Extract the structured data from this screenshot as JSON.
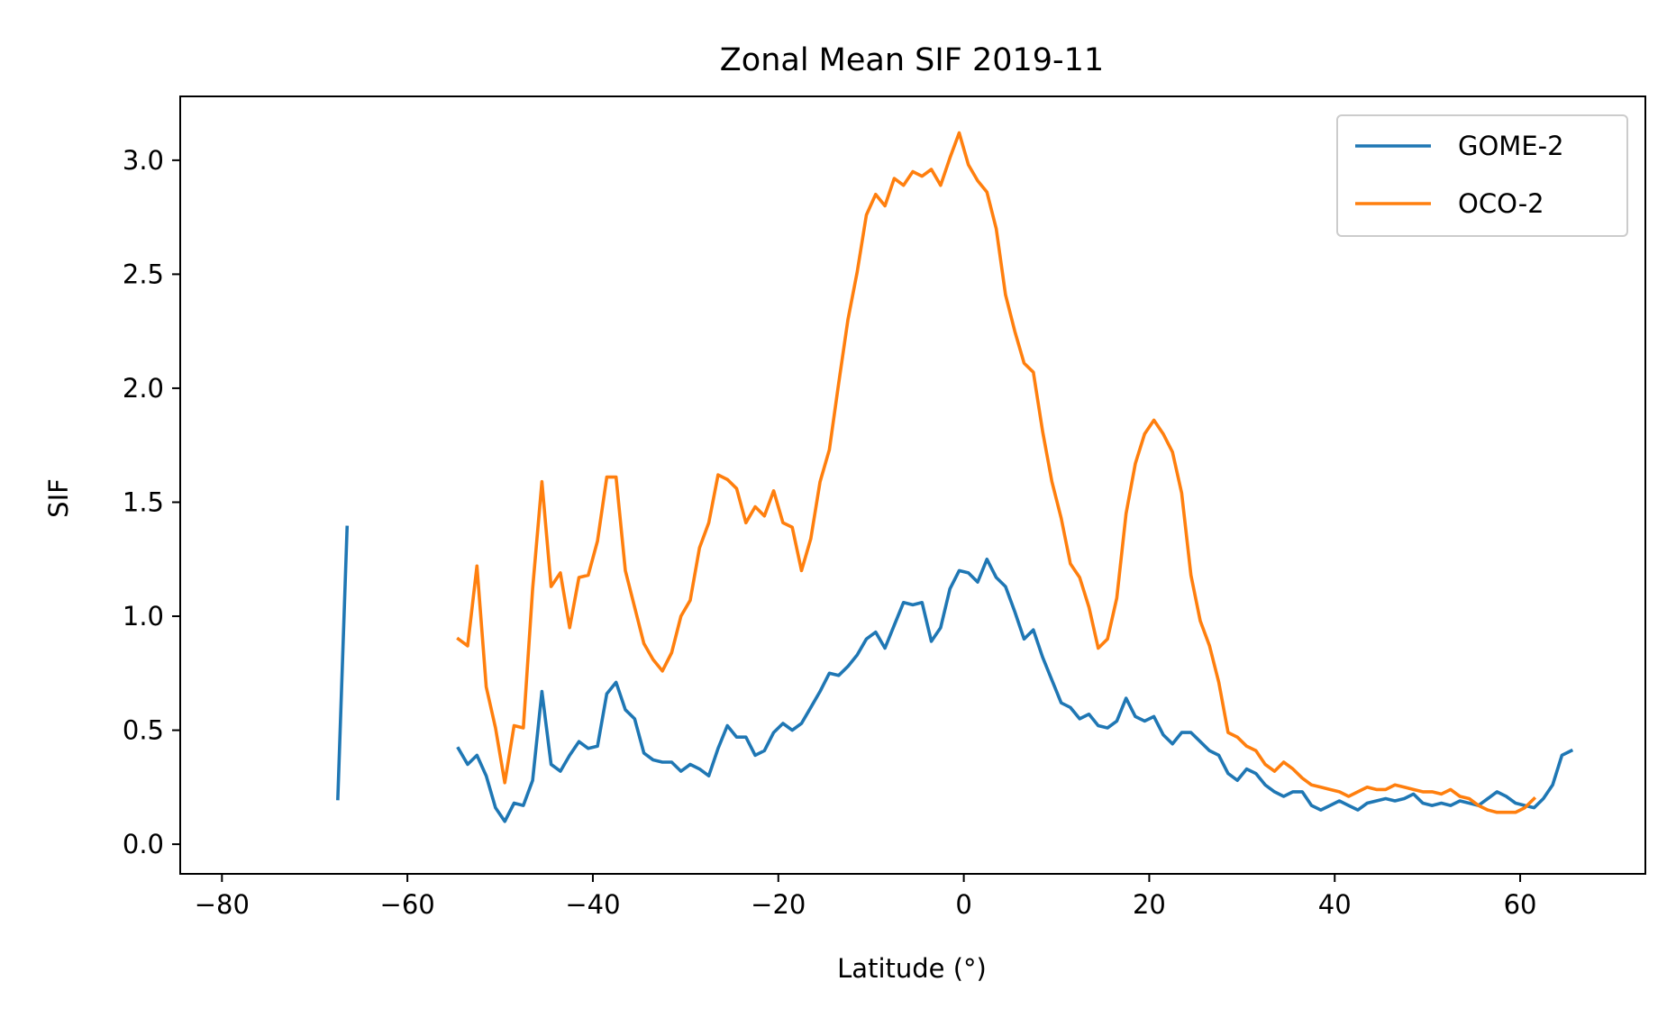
{
  "chart_data": {
    "type": "line",
    "title": "Zonal Mean SIF  2019-11",
    "xlabel": "Latitude (°)",
    "ylabel": "SIF",
    "xlim": [
      -84.5,
      73.5
    ],
    "ylim": [
      -0.13,
      3.28
    ],
    "xticks": [
      -80,
      -60,
      -40,
      -20,
      0,
      20,
      40,
      60
    ],
    "xtick_labels": [
      "−80",
      "−60",
      "−40",
      "−20",
      "0",
      "20",
      "40",
      "60"
    ],
    "yticks": [
      0.0,
      0.5,
      1.0,
      1.5,
      2.0,
      2.5,
      3.0
    ],
    "ytick_labels": [
      "0.0",
      "0.5",
      "1.0",
      "1.5",
      "2.0",
      "2.5",
      "3.0"
    ],
    "grid": false,
    "legend": "top-right",
    "series": [
      {
        "name": "GOME-2",
        "color": "#1f77b4",
        "segments": [
          [
            [
              -67.5,
              0.2
            ],
            [
              -66.5,
              1.39
            ]
          ],
          [
            [
              -54.5,
              0.42
            ],
            [
              -53.5,
              0.35
            ],
            [
              -52.5,
              0.39
            ],
            [
              -51.5,
              0.3
            ],
            [
              -50.5,
              0.16
            ],
            [
              -49.5,
              0.1
            ],
            [
              -48.5,
              0.18
            ],
            [
              -47.5,
              0.17
            ],
            [
              -46.5,
              0.28
            ],
            [
              -45.5,
              0.67
            ],
            [
              -44.5,
              0.35
            ],
            [
              -43.5,
              0.32
            ],
            [
              -42.5,
              0.39
            ],
            [
              -41.5,
              0.45
            ],
            [
              -40.5,
              0.42
            ],
            [
              -39.5,
              0.43
            ],
            [
              -38.5,
              0.66
            ],
            [
              -37.5,
              0.71
            ],
            [
              -36.5,
              0.59
            ],
            [
              -35.5,
              0.55
            ],
            [
              -34.5,
              0.4
            ],
            [
              -33.5,
              0.37
            ],
            [
              -32.5,
              0.36
            ],
            [
              -31.5,
              0.36
            ],
            [
              -30.5,
              0.32
            ],
            [
              -29.5,
              0.35
            ],
            [
              -28.5,
              0.33
            ],
            [
              -27.5,
              0.3
            ],
            [
              -26.5,
              0.42
            ],
            [
              -25.5,
              0.52
            ],
            [
              -24.5,
              0.47
            ],
            [
              -23.5,
              0.47
            ],
            [
              -22.5,
              0.39
            ],
            [
              -21.5,
              0.41
            ],
            [
              -20.5,
              0.49
            ],
            [
              -19.5,
              0.53
            ],
            [
              -18.5,
              0.5
            ],
            [
              -17.5,
              0.53
            ],
            [
              -16.5,
              0.6
            ],
            [
              -15.5,
              0.67
            ],
            [
              -14.5,
              0.75
            ],
            [
              -13.5,
              0.74
            ],
            [
              -12.5,
              0.78
            ],
            [
              -11.5,
              0.83
            ],
            [
              -10.5,
              0.9
            ],
            [
              -9.5,
              0.93
            ],
            [
              -8.5,
              0.86
            ],
            [
              -7.5,
              0.96
            ],
            [
              -6.5,
              1.06
            ],
            [
              -5.5,
              1.05
            ],
            [
              -4.5,
              1.06
            ],
            [
              -3.5,
              0.89
            ],
            [
              -2.5,
              0.95
            ],
            [
              -1.5,
              1.12
            ],
            [
              -0.5,
              1.2
            ],
            [
              0.5,
              1.19
            ],
            [
              1.5,
              1.15
            ],
            [
              2.5,
              1.25
            ],
            [
              3.5,
              1.17
            ],
            [
              4.5,
              1.13
            ],
            [
              5.5,
              1.02
            ],
            [
              6.5,
              0.9
            ],
            [
              7.5,
              0.94
            ],
            [
              8.5,
              0.82
            ],
            [
              9.5,
              0.72
            ],
            [
              10.5,
              0.62
            ],
            [
              11.5,
              0.6
            ],
            [
              12.5,
              0.55
            ],
            [
              13.5,
              0.57
            ],
            [
              14.5,
              0.52
            ],
            [
              15.5,
              0.51
            ],
            [
              16.5,
              0.54
            ],
            [
              17.5,
              0.64
            ],
            [
              18.5,
              0.56
            ],
            [
              19.5,
              0.54
            ],
            [
              20.5,
              0.56
            ],
            [
              21.5,
              0.48
            ],
            [
              22.5,
              0.44
            ],
            [
              23.5,
              0.49
            ],
            [
              24.5,
              0.49
            ],
            [
              25.5,
              0.45
            ],
            [
              26.5,
              0.41
            ],
            [
              27.5,
              0.39
            ],
            [
              28.5,
              0.31
            ],
            [
              29.5,
              0.28
            ],
            [
              30.5,
              0.33
            ],
            [
              31.5,
              0.31
            ],
            [
              32.5,
              0.26
            ],
            [
              33.5,
              0.23
            ],
            [
              34.5,
              0.21
            ],
            [
              35.5,
              0.23
            ],
            [
              36.5,
              0.23
            ],
            [
              37.5,
              0.17
            ],
            [
              38.5,
              0.15
            ],
            [
              39.5,
              0.17
            ],
            [
              40.5,
              0.19
            ],
            [
              41.5,
              0.17
            ],
            [
              42.5,
              0.15
            ],
            [
              43.5,
              0.18
            ],
            [
              44.5,
              0.19
            ],
            [
              45.5,
              0.2
            ],
            [
              46.5,
              0.19
            ],
            [
              47.5,
              0.2
            ],
            [
              48.5,
              0.22
            ],
            [
              49.5,
              0.18
            ],
            [
              50.5,
              0.17
            ],
            [
              51.5,
              0.18
            ],
            [
              52.5,
              0.17
            ],
            [
              53.5,
              0.19
            ],
            [
              54.5,
              0.18
            ],
            [
              55.5,
              0.17
            ],
            [
              56.5,
              0.2
            ],
            [
              57.5,
              0.23
            ],
            [
              58.5,
              0.21
            ],
            [
              59.5,
              0.18
            ],
            [
              60.5,
              0.17
            ],
            [
              61.5,
              0.16
            ],
            [
              62.5,
              0.2
            ],
            [
              63.5,
              0.26
            ],
            [
              64.5,
              0.39
            ],
            [
              65.5,
              0.41
            ]
          ]
        ]
      },
      {
        "name": "OCO-2",
        "color": "#ff7f0e",
        "segments": [
          [
            [
              -54.5,
              0.9
            ],
            [
              -53.5,
              0.87
            ],
            [
              -52.5,
              1.22
            ],
            [
              -51.5,
              0.69
            ],
            [
              -50.5,
              0.51
            ],
            [
              -49.5,
              0.27
            ],
            [
              -48.5,
              0.52
            ],
            [
              -47.5,
              0.51
            ],
            [
              -46.5,
              1.12
            ],
            [
              -45.5,
              1.59
            ],
            [
              -44.5,
              1.13
            ],
            [
              -43.5,
              1.19
            ],
            [
              -42.5,
              0.95
            ],
            [
              -41.5,
              1.17
            ],
            [
              -40.5,
              1.18
            ],
            [
              -39.5,
              1.33
            ],
            [
              -38.5,
              1.61
            ],
            [
              -37.5,
              1.61
            ],
            [
              -36.5,
              1.2
            ],
            [
              -35.5,
              1.04
            ],
            [
              -34.5,
              0.88
            ],
            [
              -33.5,
              0.81
            ],
            [
              -32.5,
              0.76
            ],
            [
              -31.5,
              0.84
            ],
            [
              -30.5,
              1.0
            ],
            [
              -29.5,
              1.07
            ],
            [
              -28.5,
              1.3
            ],
            [
              -27.5,
              1.41
            ],
            [
              -26.5,
              1.62
            ],
            [
              -25.5,
              1.6
            ],
            [
              -24.5,
              1.56
            ],
            [
              -23.5,
              1.41
            ],
            [
              -22.5,
              1.48
            ],
            [
              -21.5,
              1.44
            ],
            [
              -20.5,
              1.55
            ],
            [
              -19.5,
              1.41
            ],
            [
              -18.5,
              1.39
            ],
            [
              -17.5,
              1.2
            ],
            [
              -16.5,
              1.34
            ],
            [
              -15.5,
              1.59
            ],
            [
              -14.5,
              1.73
            ],
            [
              -13.5,
              2.02
            ],
            [
              -12.5,
              2.3
            ],
            [
              -11.5,
              2.51
            ],
            [
              -10.5,
              2.76
            ],
            [
              -9.5,
              2.85
            ],
            [
              -8.5,
              2.8
            ],
            [
              -7.5,
              2.92
            ],
            [
              -6.5,
              2.89
            ],
            [
              -5.5,
              2.95
            ],
            [
              -4.5,
              2.93
            ],
            [
              -3.5,
              2.96
            ],
            [
              -2.5,
              2.89
            ],
            [
              -1.5,
              3.01
            ],
            [
              -0.5,
              3.12
            ],
            [
              0.5,
              2.98
            ],
            [
              1.5,
              2.91
            ],
            [
              2.5,
              2.86
            ],
            [
              3.5,
              2.7
            ],
            [
              4.5,
              2.41
            ],
            [
              5.5,
              2.25
            ],
            [
              6.5,
              2.11
            ],
            [
              7.5,
              2.07
            ],
            [
              8.5,
              1.81
            ],
            [
              9.5,
              1.59
            ],
            [
              10.5,
              1.43
            ],
            [
              11.5,
              1.23
            ],
            [
              12.5,
              1.17
            ],
            [
              13.5,
              1.04
            ],
            [
              14.5,
              0.86
            ],
            [
              15.5,
              0.9
            ],
            [
              16.5,
              1.08
            ],
            [
              17.5,
              1.45
            ],
            [
              18.5,
              1.67
            ],
            [
              19.5,
              1.8
            ],
            [
              20.5,
              1.86
            ],
            [
              21.5,
              1.8
            ],
            [
              22.5,
              1.72
            ],
            [
              23.5,
              1.54
            ],
            [
              24.5,
              1.18
            ],
            [
              25.5,
              0.98
            ],
            [
              26.5,
              0.87
            ],
            [
              27.5,
              0.71
            ],
            [
              28.5,
              0.49
            ],
            [
              29.5,
              0.47
            ],
            [
              30.5,
              0.43
            ],
            [
              31.5,
              0.41
            ],
            [
              32.5,
              0.35
            ],
            [
              33.5,
              0.32
            ],
            [
              34.5,
              0.36
            ],
            [
              35.5,
              0.33
            ],
            [
              36.5,
              0.29
            ],
            [
              37.5,
              0.26
            ],
            [
              38.5,
              0.25
            ],
            [
              39.5,
              0.24
            ],
            [
              40.5,
              0.23
            ],
            [
              41.5,
              0.21
            ],
            [
              42.5,
              0.23
            ],
            [
              43.5,
              0.25
            ],
            [
              44.5,
              0.24
            ],
            [
              45.5,
              0.24
            ],
            [
              46.5,
              0.26
            ],
            [
              47.5,
              0.25
            ],
            [
              48.5,
              0.24
            ],
            [
              49.5,
              0.23
            ],
            [
              50.5,
              0.23
            ],
            [
              51.5,
              0.22
            ],
            [
              52.5,
              0.24
            ],
            [
              53.5,
              0.21
            ],
            [
              54.5,
              0.2
            ],
            [
              55.5,
              0.17
            ],
            [
              56.5,
              0.15
            ],
            [
              57.5,
              0.14
            ],
            [
              58.5,
              0.14
            ],
            [
              59.5,
              0.14
            ],
            [
              60.5,
              0.16
            ],
            [
              61.5,
              0.2
            ]
          ]
        ]
      }
    ]
  }
}
